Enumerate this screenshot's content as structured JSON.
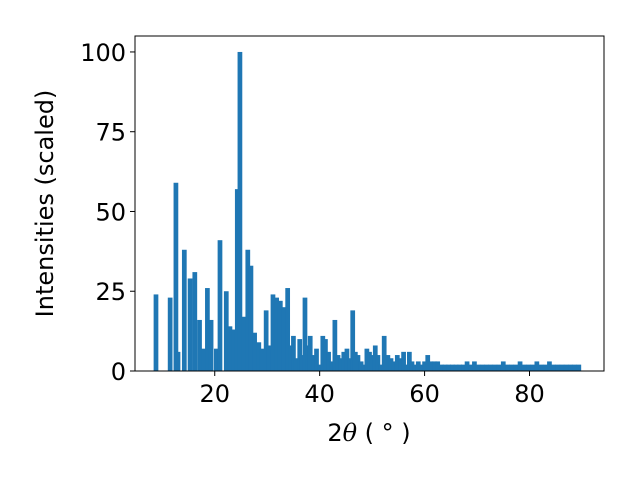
{
  "chart_data": {
    "type": "bar",
    "xlabel_prefix": "2",
    "xlabel_symbol": "θ",
    "xlabel_suffix": " ( ° )",
    "ylabel": "Intensities (scaled)",
    "xlim": [
      4.8,
      94.2
    ],
    "ylim": [
      0,
      105
    ],
    "x_ticks": [
      20,
      40,
      60,
      80
    ],
    "y_ticks": [
      0,
      25,
      50,
      75,
      100
    ],
    "bar_color": "#1f77b4",
    "bar_width": 0.9,
    "x": [
      8.8,
      11.5,
      12.6,
      13.0,
      14.2,
      15.3,
      16.2,
      17.1,
      17.9,
      18.6,
      19.3,
      20.3,
      21.0,
      22.2,
      22.9,
      23.6,
      24.3,
      24.8,
      25.6,
      26.3,
      26.9,
      27.6,
      28.4,
      29.0,
      29.8,
      30.4,
      31.1,
      31.8,
      32.5,
      33.2,
      33.9,
      34.5,
      35.0,
      35.5,
      36.2,
      36.7,
      37.2,
      37.7,
      38.2,
      38.8,
      39.4,
      40.0,
      40.6,
      41.1,
      41.7,
      42.3,
      42.9,
      43.5,
      44.0,
      44.6,
      45.2,
      45.7,
      46.3,
      46.8,
      47.3,
      47.9,
      48.5,
      49.0,
      49.5,
      50.0,
      50.6,
      51.1,
      51.7,
      52.3,
      53.0,
      53.6,
      54.2,
      54.8,
      55.4,
      56.0,
      56.6,
      57.1,
      57.6,
      58.2,
      58.8,
      59.4,
      60.0,
      60.6,
      61.2,
      61.9,
      62.5,
      63.2,
      63.9,
      64.6,
      65.3,
      66.0,
      66.7,
      67.4,
      68.1,
      68.8,
      69.5,
      70.2,
      71.0,
      71.8,
      72.6,
      73.4,
      74.2,
      75.0,
      75.8,
      76.6,
      77.4,
      78.2,
      79.0,
      79.8,
      80.6,
      81.4,
      82.2,
      83.0,
      83.8,
      84.6,
      85.4,
      86.2,
      87.0,
      87.8,
      88.6,
      89.4
    ],
    "values": [
      24,
      23,
      59,
      6,
      38,
      29,
      31,
      16,
      7,
      26,
      16,
      7,
      41,
      25,
      14,
      13,
      57,
      100,
      17,
      38,
      33,
      12,
      9,
      7,
      19,
      8,
      24,
      23,
      22,
      20,
      26,
      8,
      11,
      4,
      10,
      5,
      23,
      8,
      11,
      5,
      7,
      2,
      11,
      10,
      6,
      3,
      16,
      5,
      4,
      6,
      7,
      4,
      19,
      6,
      5,
      3,
      2,
      7,
      6,
      5,
      8,
      5,
      2,
      11,
      5,
      4,
      3,
      5,
      4,
      6,
      2,
      6,
      3,
      2,
      3,
      2,
      3,
      5,
      3,
      3,
      3,
      2,
      2,
      2,
      2,
      2,
      2,
      2,
      3,
      2,
      3,
      2,
      2,
      2,
      2,
      2,
      2,
      3,
      2,
      2,
      2,
      3,
      2,
      2,
      2,
      3,
      2,
      2,
      3,
      2,
      2,
      2,
      2,
      2,
      2,
      2
    ]
  }
}
